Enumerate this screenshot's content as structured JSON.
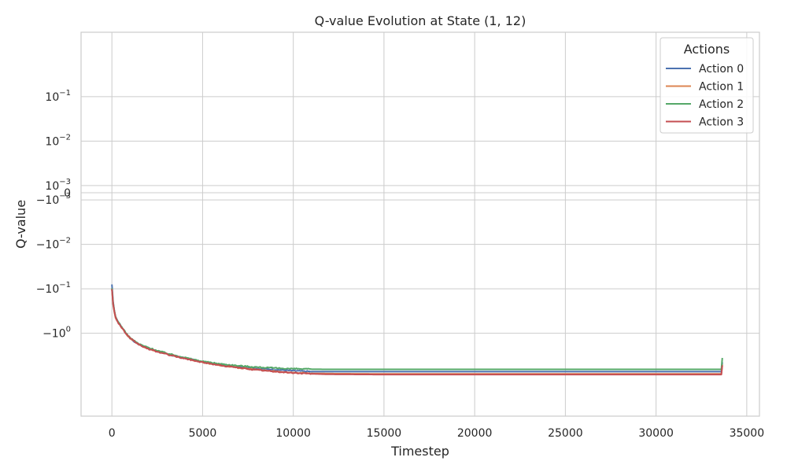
{
  "chart_data": {
    "type": "line",
    "title": "Q-value Evolution at State (1, 12)",
    "xlabel": "Timestep",
    "ylabel": "Q-value",
    "xlim": [
      -1700,
      35700
    ],
    "x_scale": "linear",
    "y_scale": "symlog",
    "grid": true,
    "x_ticks": [
      0,
      5000,
      10000,
      15000,
      20000,
      25000,
      30000,
      35000
    ],
    "x_tick_labels": [
      "0",
      "5000",
      "10000",
      "15000",
      "20000",
      "25000",
      "30000",
      "35000"
    ],
    "y_ticks": [
      {
        "mant": "10",
        "exp": "−1"
      },
      {
        "mant": "10",
        "exp": "−2"
      },
      {
        "mant": "10",
        "exp": "−3"
      },
      {
        "mant": "0",
        "exp": ""
      },
      {
        "mant": "−10",
        "exp": "−3"
      },
      {
        "mant": "−10",
        "exp": "−2"
      },
      {
        "mant": "−10",
        "exp": "−1"
      },
      {
        "mant": "−10",
        "exp": "0"
      }
    ],
    "legend": {
      "title": "Actions",
      "placement": "top-right"
    },
    "series": [
      {
        "name": "Action 0",
        "color": "#4c72b0",
        "points": [
          [
            0,
            -0.08
          ],
          [
            200,
            -0.42
          ],
          [
            600,
            -0.78
          ],
          [
            1000,
            -1.3
          ],
          [
            1500,
            -1.8
          ],
          [
            2000,
            -2.2
          ],
          [
            3000,
            -2.9
          ],
          [
            4000,
            -3.6
          ],
          [
            5000,
            -4.4
          ],
          [
            6000,
            -5.1
          ],
          [
            7000,
            -5.7
          ],
          [
            8000,
            -6.2
          ],
          [
            9000,
            -6.6
          ],
          [
            10000,
            -7.0
          ],
          [
            11000,
            -7.3
          ],
          [
            12000,
            -7.3
          ],
          [
            15000,
            -7.3
          ],
          [
            20000,
            -7.3
          ],
          [
            25000,
            -7.3
          ],
          [
            30000,
            -7.3
          ],
          [
            33600,
            -7.3
          ],
          [
            33650,
            -4.5
          ]
        ]
      },
      {
        "name": "Action 1",
        "color": "#dd8452",
        "points": [
          [
            0,
            -0.1
          ],
          [
            200,
            -0.45
          ],
          [
            600,
            -0.8
          ],
          [
            1000,
            -1.3
          ],
          [
            1500,
            -1.8
          ],
          [
            2000,
            -2.2
          ],
          [
            3000,
            -2.9
          ],
          [
            4000,
            -3.6
          ],
          [
            5000,
            -4.5
          ],
          [
            6000,
            -5.3
          ],
          [
            7000,
            -6.0
          ],
          [
            8000,
            -6.6
          ],
          [
            9000,
            -7.2
          ],
          [
            10000,
            -7.7
          ],
          [
            11000,
            -8.0
          ],
          [
            12000,
            -8.1
          ],
          [
            15000,
            -8.2
          ],
          [
            20000,
            -8.2
          ],
          [
            25000,
            -8.2
          ],
          [
            30000,
            -8.2
          ],
          [
            33600,
            -8.2
          ],
          [
            33650,
            -5.0
          ]
        ]
      },
      {
        "name": "Action 2",
        "color": "#55a868",
        "points": [
          [
            0,
            -0.1
          ],
          [
            200,
            -0.42
          ],
          [
            600,
            -0.78
          ],
          [
            1000,
            -1.25
          ],
          [
            1500,
            -1.75
          ],
          [
            2000,
            -2.1
          ],
          [
            3000,
            -2.8
          ],
          [
            4000,
            -3.5
          ],
          [
            5000,
            -4.3
          ],
          [
            6000,
            -4.9
          ],
          [
            7000,
            -5.4
          ],
          [
            8000,
            -5.8
          ],
          [
            9000,
            -6.1
          ],
          [
            10000,
            -6.3
          ],
          [
            11000,
            -6.45
          ],
          [
            12000,
            -6.5
          ],
          [
            15000,
            -6.5
          ],
          [
            20000,
            -6.5
          ],
          [
            25000,
            -6.5
          ],
          [
            30000,
            -6.5
          ],
          [
            33600,
            -6.5
          ],
          [
            33650,
            -3.6
          ]
        ]
      },
      {
        "name": "Action 3",
        "color": "#c44e52",
        "points": [
          [
            0,
            -0.1
          ],
          [
            200,
            -0.44
          ],
          [
            600,
            -0.8
          ],
          [
            1000,
            -1.3
          ],
          [
            1500,
            -1.8
          ],
          [
            2000,
            -2.25
          ],
          [
            3000,
            -2.95
          ],
          [
            4000,
            -3.7
          ],
          [
            5000,
            -4.5
          ],
          [
            6000,
            -5.3
          ],
          [
            7000,
            -6.0
          ],
          [
            8000,
            -6.7
          ],
          [
            9000,
            -7.3
          ],
          [
            10000,
            -7.8
          ],
          [
            11000,
            -8.2
          ],
          [
            12000,
            -8.4
          ],
          [
            15000,
            -8.5
          ],
          [
            20000,
            -8.5
          ],
          [
            25000,
            -8.5
          ],
          [
            30000,
            -8.5
          ],
          [
            33600,
            -8.5
          ],
          [
            33650,
            -5.3
          ]
        ]
      }
    ]
  }
}
